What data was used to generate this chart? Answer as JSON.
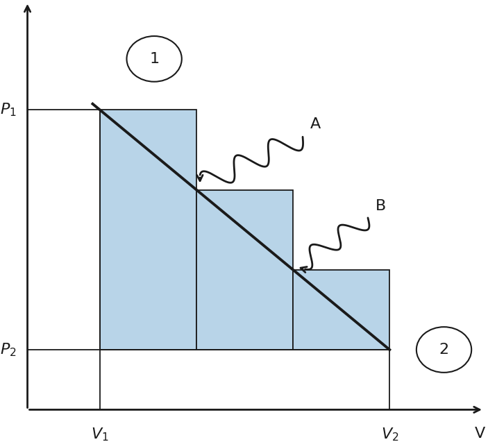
{
  "background_color": "#ffffff",
  "curve_color": "#1a1a1a",
  "rect_fill_color": "#b8d4e8",
  "rect_edge_color": "#1a1a1a",
  "line_color": "#1a1a1a",
  "axis_color": "#1a1a1a",
  "V1": 1.0,
  "V2": 5.0,
  "P1": 5.0,
  "P2": 1.0,
  "x_min": 0.0,
  "x_max": 6.3,
  "y_min": 0.0,
  "y_max": 6.8,
  "step_boundaries": [
    1.0,
    2.333,
    3.667,
    5.0
  ],
  "label_fontsize": 16,
  "annotation_fontsize": 16,
  "circle_fontsize": 16
}
